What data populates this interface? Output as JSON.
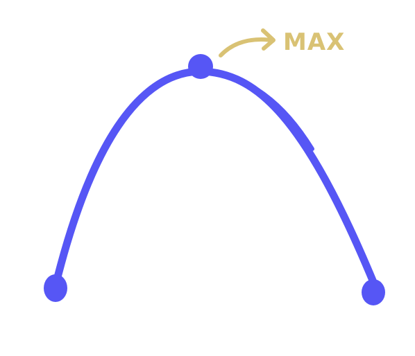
{
  "annotation": {
    "label": "MAX"
  },
  "colors": {
    "curve": "#5656f5",
    "annotation": "#d9c274",
    "background": "#ffffff"
  }
}
